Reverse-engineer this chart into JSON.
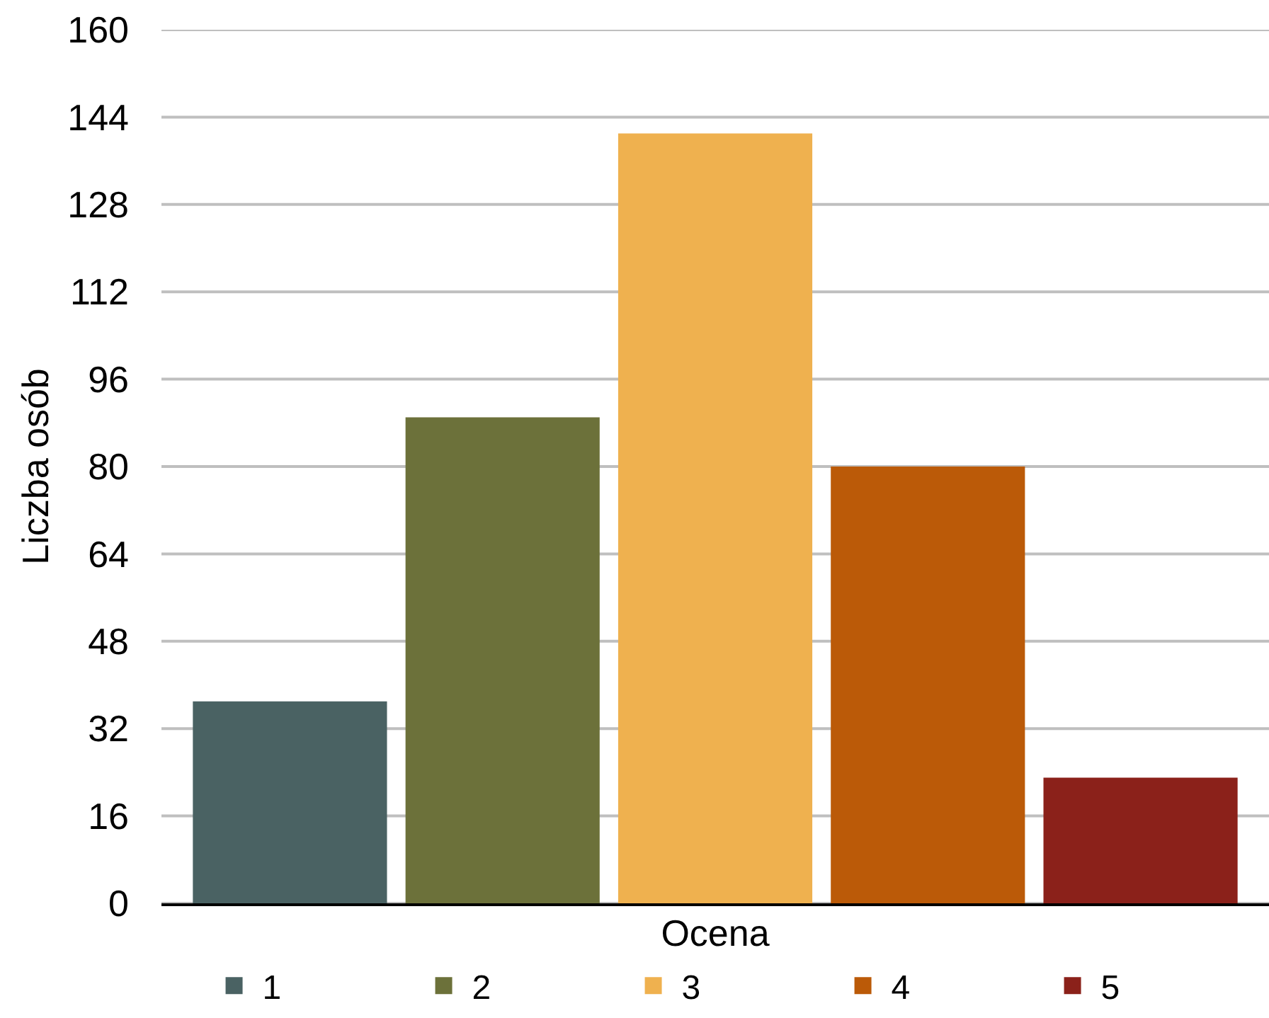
{
  "chart_data": {
    "type": "bar",
    "xlabel": "Ocena",
    "ylabel": "Liczba osób",
    "categories": [
      null
    ],
    "series": [
      {
        "name": "1",
        "color": "#4a6263",
        "values": [
          37
        ]
      },
      {
        "name": "2",
        "color": "#6c713a",
        "values": [
          89
        ]
      },
      {
        "name": "3",
        "color": "#efb14f",
        "values": [
          141
        ]
      },
      {
        "name": "4",
        "color": "#bb5a08",
        "values": [
          80
        ]
      },
      {
        "name": "5",
        "color": "#8b211a",
        "values": [
          23
        ]
      }
    ],
    "ylim": [
      0,
      160
    ],
    "yticks": [
      0,
      16,
      32,
      48,
      64,
      80,
      96,
      112,
      128,
      144,
      160
    ],
    "grid": "y",
    "legend": "bottom"
  }
}
